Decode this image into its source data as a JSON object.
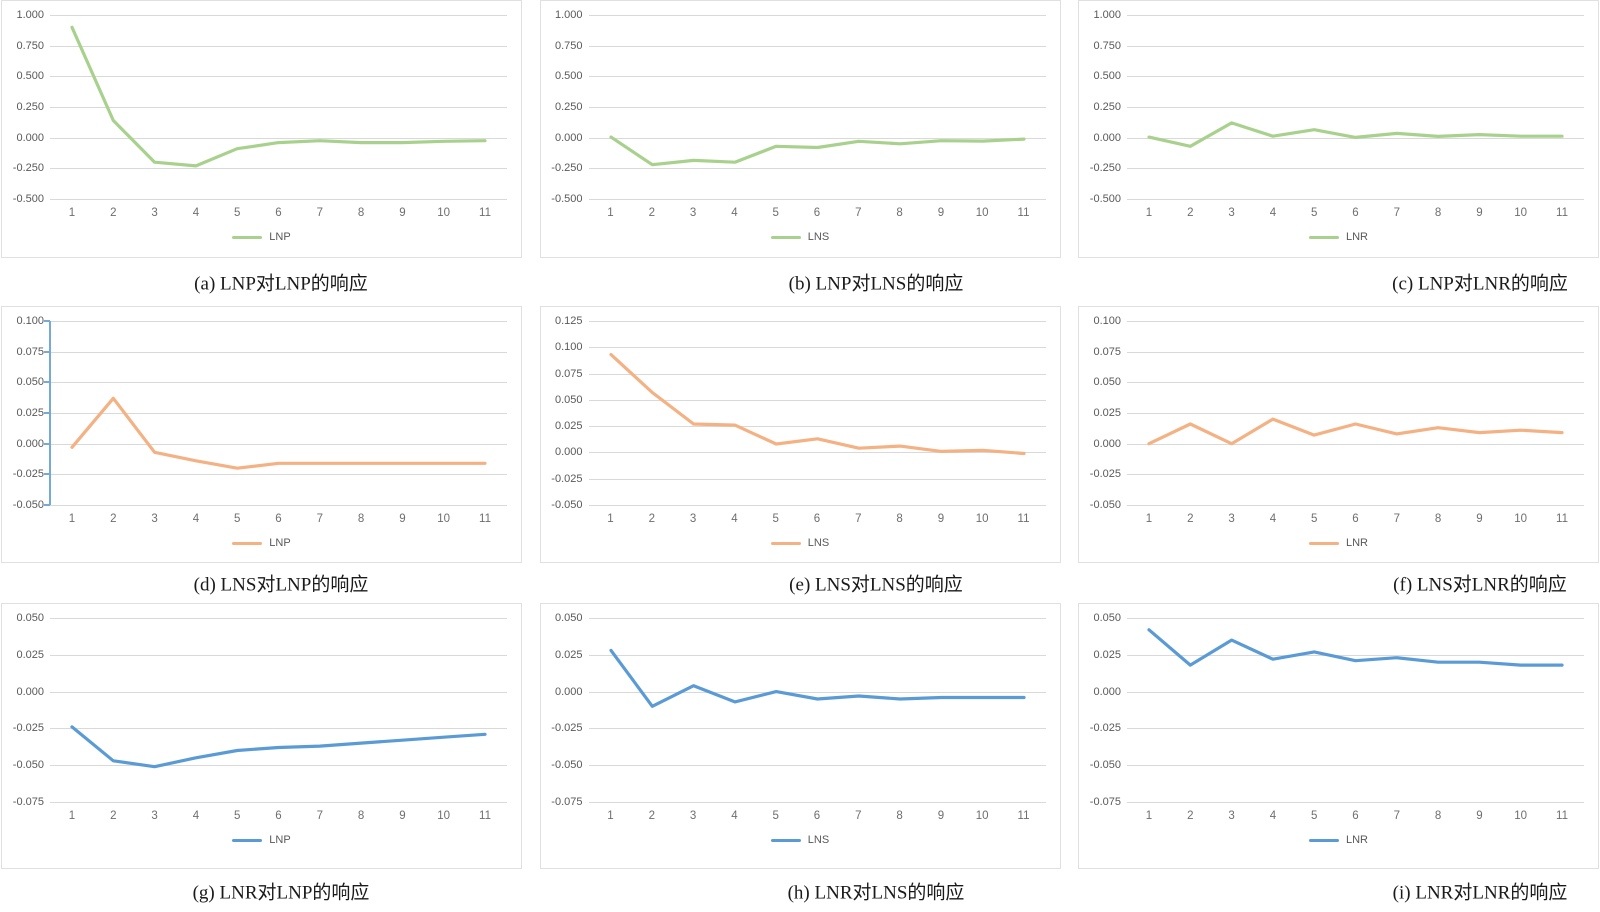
{
  "colors": {
    "green": "#a9d18e",
    "orange": "#f4b183",
    "blue": "#5b9bd5",
    "gridline": "#d9d9d9",
    "axis_text": "#595959",
    "panel_border": "#e0e0e0",
    "caption_text": "#1a1a1a",
    "axis_highlight": "#74a9d8"
  },
  "chart_data": [
    {
      "id": "a",
      "type": "line",
      "row": 0,
      "col": 0,
      "caption": "(a) LNP对LNP的响应",
      "legend": "LNP",
      "line_color": "#a9d18e",
      "x": [
        1,
        2,
        3,
        4,
        5,
        6,
        7,
        8,
        9,
        10,
        11
      ],
      "values": [
        0.9,
        0.14,
        -0.2,
        -0.23,
        -0.09,
        -0.04,
        -0.025,
        -0.04,
        -0.04,
        -0.03,
        -0.025
      ],
      "yticks": [
        "1.000",
        "0.750",
        "0.500",
        "0.250",
        "0.000",
        "-0.250",
        "-0.500"
      ],
      "ylim": {
        "min": -0.5,
        "max": 1.0
      },
      "grid": true,
      "legend_position": "bottom",
      "axis_highlight": false
    },
    {
      "id": "b",
      "type": "line",
      "row": 0,
      "col": 1,
      "caption": "(b) LNP对LNS的响应",
      "legend": "LNS",
      "line_color": "#a9d18e",
      "x": [
        1,
        2,
        3,
        4,
        5,
        6,
        7,
        8,
        9,
        10,
        11
      ],
      "values": [
        0.005,
        -0.22,
        -0.185,
        -0.2,
        -0.07,
        -0.08,
        -0.03,
        -0.05,
        -0.025,
        -0.028,
        -0.012
      ],
      "yticks": [
        "1.000",
        "0.750",
        "0.500",
        "0.250",
        "0.000",
        "-0.250",
        "-0.500"
      ],
      "ylim": {
        "min": -0.5,
        "max": 1.0
      },
      "grid": true,
      "legend_position": "bottom",
      "axis_highlight": false
    },
    {
      "id": "c",
      "type": "line",
      "row": 0,
      "col": 2,
      "caption": "(c) LNP对LNR的响应",
      "legend": "LNR",
      "line_color": "#a9d18e",
      "x": [
        1,
        2,
        3,
        4,
        5,
        6,
        7,
        8,
        9,
        10,
        11
      ],
      "values": [
        0.005,
        -0.07,
        0.12,
        0.012,
        0.065,
        0.002,
        0.035,
        0.01,
        0.025,
        0.012,
        0.012
      ],
      "yticks": [
        "1.000",
        "0.750",
        "0.500",
        "0.250",
        "0.000",
        "-0.250",
        "-0.500"
      ],
      "ylim": {
        "min": -0.5,
        "max": 1.0
      },
      "grid": true,
      "legend_position": "bottom",
      "axis_highlight": false
    },
    {
      "id": "d",
      "type": "line",
      "row": 1,
      "col": 0,
      "caption": "(d) LNS对LNP的响应",
      "legend": "LNP",
      "line_color": "#f4b183",
      "x": [
        1,
        2,
        3,
        4,
        5,
        6,
        7,
        8,
        9,
        10,
        11
      ],
      "values": [
        -0.003,
        0.037,
        -0.007,
        -0.014,
        -0.02,
        -0.016,
        -0.016,
        -0.016,
        -0.016,
        -0.016,
        -0.016
      ],
      "yticks": [
        "0.100",
        "0.075",
        "0.050",
        "0.025",
        "0.000",
        "-0.025",
        "-0.050"
      ],
      "ylim": {
        "min": -0.05,
        "max": 0.1
      },
      "grid": true,
      "legend_position": "bottom",
      "axis_highlight": true
    },
    {
      "id": "e",
      "type": "line",
      "row": 1,
      "col": 1,
      "caption": "(e) LNS对LNS的响应",
      "legend": "LNS",
      "line_color": "#f4b183",
      "x": [
        1,
        2,
        3,
        4,
        5,
        6,
        7,
        8,
        9,
        10,
        11
      ],
      "values": [
        0.093,
        0.057,
        0.027,
        0.026,
        0.008,
        0.013,
        0.004,
        0.006,
        0.001,
        0.002,
        -0.001
      ],
      "yticks": [
        "0.125",
        "0.100",
        "0.075",
        "0.050",
        "0.025",
        "0.000",
        "-0.025",
        "-0.050"
      ],
      "ylim": {
        "min": -0.05,
        "max": 0.125
      },
      "grid": true,
      "legend_position": "bottom",
      "axis_highlight": false
    },
    {
      "id": "f",
      "type": "line",
      "row": 1,
      "col": 2,
      "caption": "(f) LNS对LNR的响应",
      "legend": "LNR",
      "line_color": "#f4b183",
      "x": [
        1,
        2,
        3,
        4,
        5,
        6,
        7,
        8,
        9,
        10,
        11
      ],
      "values": [
        0.0,
        0.016,
        0.0,
        0.02,
        0.007,
        0.016,
        0.008,
        0.013,
        0.009,
        0.011,
        0.009
      ],
      "yticks": [
        "0.100",
        "0.075",
        "0.050",
        "0.025",
        "0.000",
        "-0.025",
        "-0.050"
      ],
      "ylim": {
        "min": -0.05,
        "max": 0.1
      },
      "grid": true,
      "legend_position": "bottom",
      "axis_highlight": false
    },
    {
      "id": "g",
      "type": "line",
      "row": 2,
      "col": 0,
      "caption": "(g) LNR对LNP的响应",
      "legend": "LNP",
      "line_color": "#5b9bd5",
      "x": [
        1,
        2,
        3,
        4,
        5,
        6,
        7,
        8,
        9,
        10,
        11
      ],
      "values": [
        -0.024,
        -0.047,
        -0.051,
        -0.045,
        -0.04,
        -0.038,
        -0.037,
        -0.035,
        -0.033,
        -0.031,
        -0.029
      ],
      "yticks": [
        "0.050",
        "0.025",
        "0.000",
        "-0.025",
        "-0.050",
        "-0.075"
      ],
      "ylim": {
        "min": -0.075,
        "max": 0.05
      },
      "grid": true,
      "legend_position": "bottom",
      "axis_highlight": false
    },
    {
      "id": "h",
      "type": "line",
      "row": 2,
      "col": 1,
      "caption": "(h) LNR对LNS的响应",
      "legend": "LNS",
      "line_color": "#5b9bd5",
      "x": [
        1,
        2,
        3,
        4,
        5,
        6,
        7,
        8,
        9,
        10,
        11
      ],
      "values": [
        0.028,
        -0.01,
        0.004,
        -0.007,
        0.0,
        -0.005,
        -0.003,
        -0.005,
        -0.004,
        -0.004,
        -0.004
      ],
      "yticks": [
        "0.050",
        "0.025",
        "0.000",
        "-0.025",
        "-0.050",
        "-0.075"
      ],
      "ylim": {
        "min": -0.075,
        "max": 0.05
      },
      "grid": true,
      "legend_position": "bottom",
      "axis_highlight": false
    },
    {
      "id": "i",
      "type": "line",
      "row": 2,
      "col": 2,
      "caption": "(i) LNR对LNR的响应",
      "legend": "LNR",
      "line_color": "#5b9bd5",
      "x": [
        1,
        2,
        3,
        4,
        5,
        6,
        7,
        8,
        9,
        10,
        11
      ],
      "values": [
        0.042,
        0.018,
        0.035,
        0.022,
        0.027,
        0.021,
        0.023,
        0.02,
        0.02,
        0.018,
        0.018
      ],
      "yticks": [
        "0.050",
        "0.025",
        "0.000",
        "-0.025",
        "-0.050",
        "-0.075"
      ],
      "ylim": {
        "min": -0.075,
        "max": 0.05
      },
      "grid": true,
      "legend_position": "bottom",
      "axis_highlight": false
    }
  ]
}
